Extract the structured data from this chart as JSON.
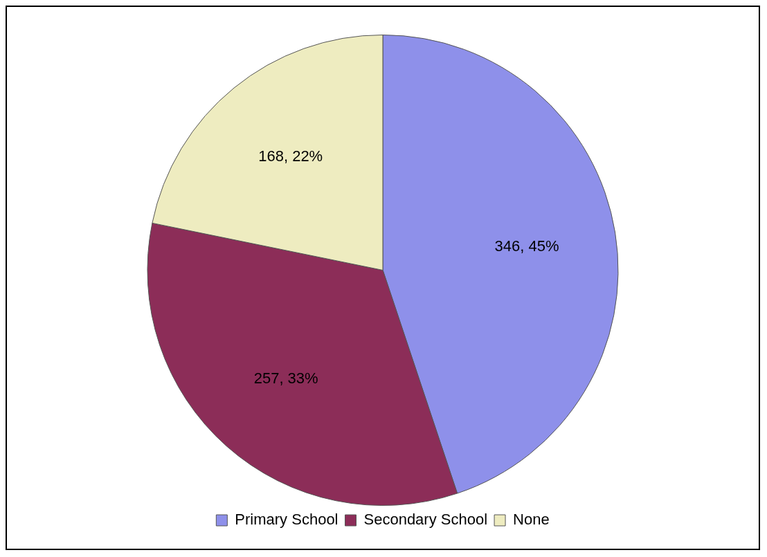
{
  "chart_data": {
    "type": "pie",
    "categories": [
      "Primary School",
      "Secondary School",
      "None"
    ],
    "values": [
      346,
      257,
      168
    ],
    "colors": [
      "#8e90ea",
      "#8c2d58",
      "#eeecc0"
    ],
    "value_labels": [
      "346, 45%",
      "257, 33%",
      "168, 22%"
    ],
    "legend": "bottom"
  }
}
